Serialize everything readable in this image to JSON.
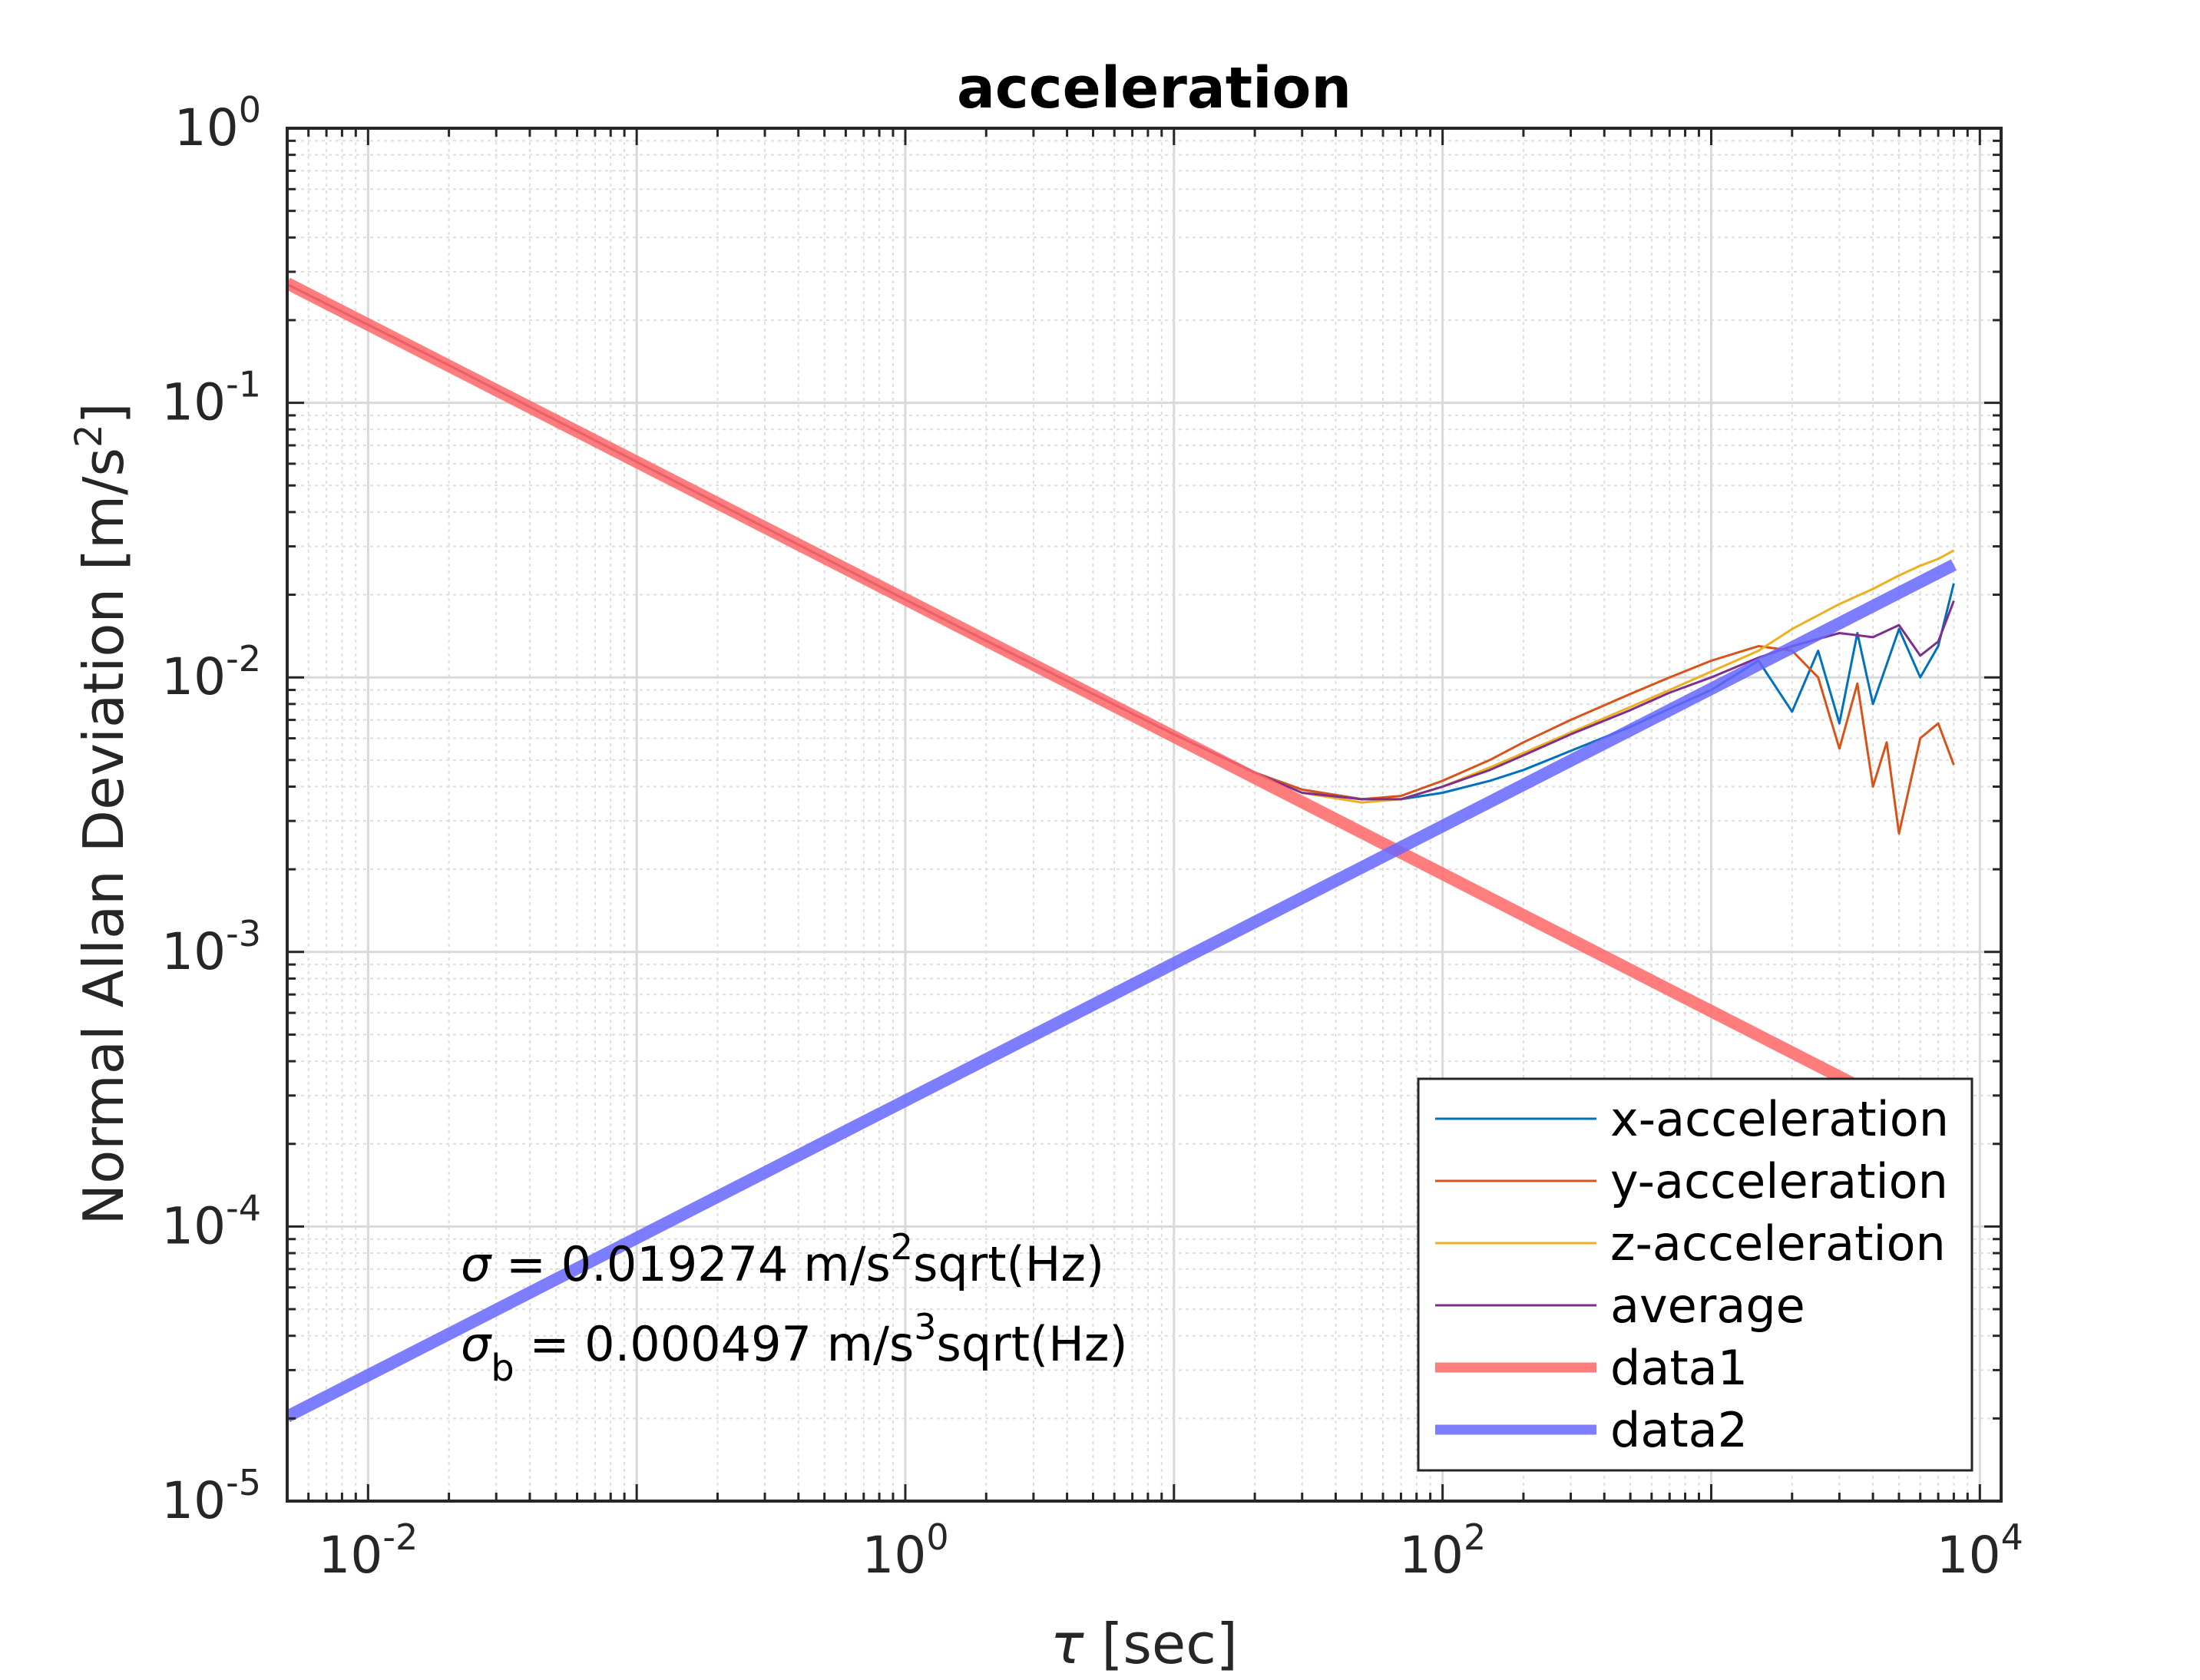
{
  "chart_data": {
    "type": "line",
    "title": "acceleration",
    "xlabel": "τ [sec]",
    "ylabel": "Normal Allan Deviation [m/s²]",
    "x_scale": "log",
    "y_scale": "log",
    "xlim": [
      0.005,
      12000
    ],
    "ylim": [
      1e-05,
      1
    ],
    "grid": true,
    "minor_grid": true,
    "legend_location": "bottom-right",
    "x_ticks": [
      {
        "value": 0.01,
        "base": "10",
        "exp": "-2"
      },
      {
        "value": 1,
        "base": "10",
        "exp": "0"
      },
      {
        "value": 100,
        "base": "10",
        "exp": "2"
      },
      {
        "value": 10000,
        "base": "10",
        "exp": "4"
      }
    ],
    "y_ticks": [
      {
        "value": 1,
        "base": "10",
        "exp": "0"
      },
      {
        "value": 0.1,
        "base": "10",
        "exp": "-1"
      },
      {
        "value": 0.01,
        "base": "10",
        "exp": "-2"
      },
      {
        "value": 0.001,
        "base": "10",
        "exp": "-3"
      },
      {
        "value": 0.0001,
        "base": "10",
        "exp": "-4"
      },
      {
        "value": 1e-05,
        "base": "10",
        "exp": "-5"
      }
    ],
    "series": [
      {
        "name": "x-acceleration",
        "color": "#0072BD",
        "width": 3,
        "opacity": 1,
        "x": [
          0.005,
          0.02,
          0.1,
          0.5,
          1,
          2,
          5,
          10,
          20,
          30,
          50,
          70,
          100,
          150,
          200,
          300,
          500,
          700,
          1000,
          1500,
          2000,
          2500,
          3000,
          3500,
          4000,
          5000,
          6000,
          7000,
          8000
        ],
        "y": [
          0.27,
          0.137,
          0.061,
          0.0272,
          0.0192,
          0.0136,
          0.0087,
          0.0062,
          0.0045,
          0.0039,
          0.0036,
          0.0036,
          0.0038,
          0.0042,
          0.0046,
          0.0054,
          0.0066,
          0.0077,
          0.009,
          0.0115,
          0.0075,
          0.0125,
          0.0068,
          0.0145,
          0.008,
          0.015,
          0.01,
          0.013,
          0.022
        ]
      },
      {
        "name": "y-acceleration",
        "color": "#D95319",
        "width": 3,
        "opacity": 1,
        "x": [
          0.005,
          0.02,
          0.1,
          0.5,
          1,
          2,
          5,
          10,
          20,
          30,
          50,
          70,
          100,
          150,
          200,
          300,
          500,
          700,
          1000,
          1500,
          2000,
          2500,
          3000,
          3500,
          4000,
          4500,
          5000,
          6000,
          7000,
          8000
        ],
        "y": [
          0.27,
          0.137,
          0.061,
          0.0272,
          0.0192,
          0.0136,
          0.0087,
          0.0062,
          0.0045,
          0.0039,
          0.0036,
          0.0037,
          0.0042,
          0.005,
          0.0058,
          0.007,
          0.0087,
          0.01,
          0.0115,
          0.013,
          0.0125,
          0.01,
          0.0055,
          0.0095,
          0.004,
          0.0058,
          0.0027,
          0.006,
          0.0068,
          0.0048
        ]
      },
      {
        "name": "z-acceleration",
        "color": "#EDB120",
        "width": 3,
        "opacity": 1,
        "x": [
          0.005,
          0.02,
          0.1,
          0.5,
          1,
          2,
          5,
          10,
          20,
          30,
          50,
          70,
          100,
          150,
          200,
          300,
          500,
          700,
          1000,
          1500,
          2000,
          3000,
          4000,
          5000,
          6000,
          7000,
          8000
        ],
        "y": [
          0.27,
          0.137,
          0.061,
          0.0272,
          0.0192,
          0.0136,
          0.0087,
          0.0062,
          0.0045,
          0.0038,
          0.0035,
          0.0036,
          0.004,
          0.0047,
          0.0053,
          0.0063,
          0.0078,
          0.009,
          0.0105,
          0.0125,
          0.015,
          0.0185,
          0.021,
          0.0235,
          0.0255,
          0.027,
          0.029
        ]
      },
      {
        "name": "average",
        "color": "#7E2F8E",
        "width": 3,
        "opacity": 1,
        "x": [
          0.005,
          0.02,
          0.1,
          0.5,
          1,
          2,
          5,
          10,
          20,
          30,
          50,
          70,
          100,
          150,
          200,
          300,
          500,
          700,
          1000,
          1500,
          2000,
          3000,
          4000,
          5000,
          6000,
          7000,
          8000
        ],
        "y": [
          0.27,
          0.137,
          0.061,
          0.0272,
          0.0192,
          0.0136,
          0.0087,
          0.0062,
          0.0045,
          0.0038,
          0.0036,
          0.0036,
          0.004,
          0.0046,
          0.0052,
          0.0062,
          0.0076,
          0.0088,
          0.01,
          0.0118,
          0.013,
          0.0145,
          0.014,
          0.0155,
          0.012,
          0.0135,
          0.019
        ]
      },
      {
        "name": "data1",
        "color": "#FF6666",
        "width": 16,
        "opacity": 0.85,
        "x": [
          0.005,
          8000
        ],
        "y": [
          0.2726,
          0.000215
        ]
      },
      {
        "name": "data2",
        "color": "#6666FF",
        "width": 16,
        "opacity": 0.85,
        "x": [
          0.005,
          8000
        ],
        "y": [
          2.03e-05,
          0.0257
        ]
      }
    ],
    "annotations": [
      {
        "sym": "σ",
        "sub": "",
        "text": " = 0.019274 m/s",
        "sup": "2",
        "tail": "sqrt(Hz)"
      },
      {
        "sym": "σ",
        "sub": "b",
        "text": " = 0.000497 m/s",
        "sup": "3",
        "tail": "sqrt(Hz)"
      }
    ]
  }
}
